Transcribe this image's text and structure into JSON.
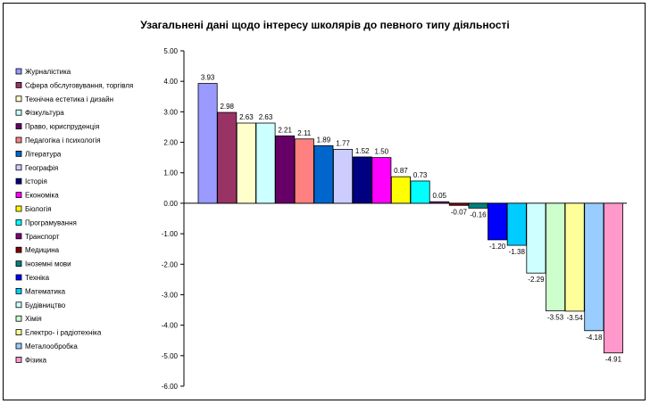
{
  "chart_data": {
    "type": "bar",
    "title": "Узагальнені дані щодо інтересу школярів до певного типу діяльності",
    "xlabel": "",
    "ylabel": "",
    "ylim": [
      -6,
      5
    ],
    "yticks": [
      "5.00",
      "4.00",
      "3.00",
      "2.00",
      "1.00",
      "0.00",
      "-1.00",
      "-2.00",
      "-3.00",
      "-4.00",
      "-5.00",
      "-6.00"
    ],
    "legend_position": "left",
    "grid": false,
    "series": [
      {
        "name": "Журналістика",
        "value": 3.93,
        "label": "3.93",
        "color": "#9999ff"
      },
      {
        "name": "Сфера обслуговування, торгівля",
        "value": 2.98,
        "label": "2.98",
        "color": "#993366"
      },
      {
        "name": "Технічна естетика і дизайн",
        "value": 2.63,
        "label": "2.63",
        "color": "#ffffcc"
      },
      {
        "name": "Фізкультура",
        "value": 2.63,
        "label": "2.63",
        "color": "#ccffff"
      },
      {
        "name": "Право, юриспруденція",
        "value": 2.21,
        "label": "2.21",
        "color": "#660066"
      },
      {
        "name": "Педагогіка і психологія",
        "value": 2.11,
        "label": "2.11",
        "color": "#ff8080"
      },
      {
        "name": "Література",
        "value": 1.89,
        "label": "1.89",
        "color": "#0066cc"
      },
      {
        "name": "Географія",
        "value": 1.77,
        "label": "1.77",
        "color": "#ccccff"
      },
      {
        "name": "Історія",
        "value": 1.52,
        "label": "1.52",
        "color": "#000080"
      },
      {
        "name": "Економіка",
        "value": 1.5,
        "label": "1.50",
        "color": "#ff00ff"
      },
      {
        "name": "Біологія",
        "value": 0.87,
        "label": "0.87",
        "color": "#ffff00"
      },
      {
        "name": "Програмування",
        "value": 0.73,
        "label": "0.73",
        "color": "#00ffff"
      },
      {
        "name": "Транспорт",
        "value": 0.05,
        "label": "0.05",
        "color": "#800080"
      },
      {
        "name": "Медицина",
        "value": -0.07,
        "label": "-0.07",
        "color": "#800000"
      },
      {
        "name": "Іноземні мови",
        "value": -0.16,
        "label": "-0.16",
        "color": "#008080"
      },
      {
        "name": "Техніка",
        "value": -1.2,
        "label": "-1.20",
        "color": "#0000ff"
      },
      {
        "name": "Математика",
        "value": -1.38,
        "label": "-1.38",
        "color": "#00ccff"
      },
      {
        "name": "Будівництво",
        "value": -2.29,
        "label": "-2.29",
        "color": "#ccffff"
      },
      {
        "name": "Хімія",
        "value": -3.53,
        "label": "-3.53",
        "color": "#ccffcc"
      },
      {
        "name": "Електро- і радіотехніка",
        "value": -3.54,
        "label": "-3.54",
        "color": "#ffff99"
      },
      {
        "name": "Металообробка",
        "value": -4.18,
        "label": "-4.18",
        "color": "#99ccff"
      },
      {
        "name": "Фізика",
        "value": -4.91,
        "label": "-4.91",
        "color": "#ff99cc"
      }
    ]
  }
}
